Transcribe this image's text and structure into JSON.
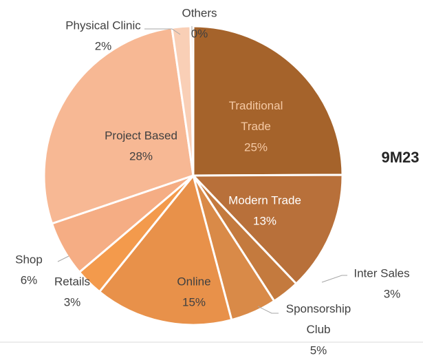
{
  "chart_data": {
    "type": "pie",
    "title": "9M23",
    "categories": [
      "Traditional Trade",
      "Modern Trade",
      "Inter Sales",
      "Sponsorship Club",
      "Online",
      "Retails",
      "Shop",
      "Project Based",
      "Physical Clinic",
      "Others"
    ],
    "values": [
      25,
      13,
      3,
      5,
      15,
      3,
      6,
      28,
      2,
      0.3
    ],
    "value_labels": [
      "25%",
      "13%",
      "3%",
      "5%",
      "15%",
      "3%",
      "6%",
      "28%",
      "2%",
      "0%"
    ],
    "colors": [
      "#a5632b",
      "#b8703a",
      "#c47a3e",
      "#d98a48",
      "#e8914a",
      "#f39a4c",
      "#f5ad84",
      "#f7b894",
      "#f9cfb6",
      "#fbe0cf"
    ]
  }
}
